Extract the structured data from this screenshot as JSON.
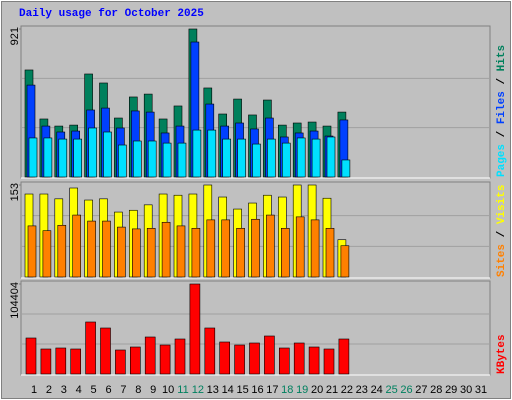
{
  "title": "Daily usage for October 2025",
  "categories": [
    "1",
    "2",
    "3",
    "4",
    "5",
    "6",
    "7",
    "8",
    "9",
    "10",
    "11",
    "12",
    "13",
    "14",
    "15",
    "16",
    "17",
    "18",
    "19",
    "20",
    "21",
    "22",
    "23",
    "24",
    "25",
    "26",
    "27",
    "28",
    "29",
    "30",
    "31"
  ],
  "weekends": [
    10,
    11,
    17,
    18,
    24,
    25
  ],
  "weekend_color": "#00805f",
  "label_color": "#000000",
  "legend_separator": " / ",
  "chart_data": [
    {
      "type": "bar",
      "ylim": [
        0,
        921
      ],
      "yticks": [
        921
      ],
      "series": [
        {
          "name": "Hits",
          "color": "#00805c",
          "values": [
            666,
            361,
            317,
            323,
            641,
            585,
            367,
            498,
            516,
            361,
            442,
            921,
            554,
            392,
            485,
            386,
            479,
            323,
            336,
            342,
            317,
            404,
            null,
            null,
            null,
            null,
            null,
            null,
            null,
            null,
            null
          ]
        },
        {
          "name": "Files",
          "color": "#0040ff",
          "values": [
            572,
            317,
            280,
            286,
            417,
            429,
            305,
            411,
            404,
            274,
            317,
            840,
            454,
            317,
            336,
            299,
            367,
            249,
            274,
            286,
            255,
            355,
            null,
            null,
            null,
            null,
            null,
            null,
            null,
            null,
            null
          ]
        },
        {
          "name": "Pages",
          "color": "#00e0ff",
          "values": [
            243,
            243,
            236,
            236,
            305,
            280,
            199,
            224,
            224,
            211,
            211,
            292,
            292,
            236,
            236,
            205,
            236,
            211,
            243,
            236,
            249,
            106,
            null,
            null,
            null,
            null,
            null,
            null,
            null,
            null,
            null
          ]
        }
      ]
    },
    {
      "type": "bar",
      "ylim": [
        0,
        153
      ],
      "yticks": [
        153
      ],
      "series": [
        {
          "name": "Visits",
          "color": "#ffff00",
          "values": [
            138,
            138,
            130,
            148,
            128,
            130,
            108,
            111,
            120,
            138,
            136,
            138,
            153,
            133,
            113,
            123,
            136,
            133,
            153,
            153,
            131,
            62,
            null,
            null,
            null,
            null,
            null,
            null,
            null,
            null,
            null
          ]
        },
        {
          "name": "Sites",
          "color": "#ff8000",
          "values": [
            85,
            77,
            86,
            103,
            93,
            93,
            83,
            80,
            81,
            91,
            85,
            81,
            95,
            95,
            81,
            96,
            103,
            81,
            100,
            95,
            81,
            52,
            null,
            null,
            null,
            null,
            null,
            null,
            null,
            null,
            null
          ]
        }
      ]
    },
    {
      "type": "bar",
      "ylim": [
        0,
        104404
      ],
      "yticks": [
        104404
      ],
      "series": [
        {
          "name": "KBytes",
          "color": "#ff0000",
          "values": [
            41760,
            29000,
            30160,
            29000,
            60320,
            53360,
            27840,
            31320,
            42920,
            33640,
            40600,
            104404,
            53360,
            37120,
            33640,
            35960,
            44080,
            30160,
            35960,
            31320,
            29000,
            40600,
            null,
            null,
            null,
            null,
            null,
            null,
            null,
            null,
            null
          ]
        }
      ]
    }
  ]
}
